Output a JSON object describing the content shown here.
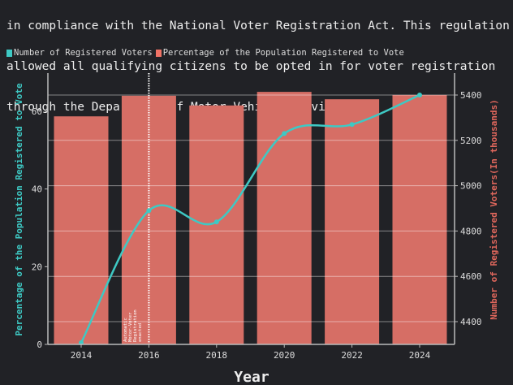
{
  "description": {
    "lines": [
      "in compliance with the National Voter Registration Act. This regulation",
      "allowed all qualifying citizens to be opted in for voter registration",
      "through the Department of Motor Vehicle services."
    ]
  },
  "legend": {
    "items": [
      {
        "label": "Number of Registered Voters",
        "color": "#3ec9c4"
      },
      {
        "label": "Percentage of the Population Registered to Vote",
        "color": "#f07366"
      }
    ]
  },
  "colors": {
    "bar": "#d66e65",
    "line": "#3ec9c4",
    "left_axis_label": "#3ec9c4",
    "right_axis_label": "#e0675c",
    "background": "#212226",
    "axis": "#bbbbbb"
  },
  "chart_data": {
    "type": "bar+line",
    "title": "",
    "xlabel": "Year",
    "categories": [
      "2014",
      "2016",
      "2018",
      "2020",
      "2022",
      "2024"
    ],
    "series": [
      {
        "name": "Percentage of the Population Registered to Vote",
        "type": "bar",
        "axis": "left",
        "values": [
          58.7,
          64.0,
          61.5,
          65.0,
          63.1,
          64.2
        ]
      },
      {
        "name": "Number of Registered Voters",
        "type": "line",
        "axis": "right",
        "values": [
          4300,
          4890,
          4840,
          5230,
          5270,
          5400
        ]
      }
    ],
    "ylabel_left": "Percentage of the Population Registered to Vote",
    "ylabel_right": "Number of Registered Voters(In thousands)",
    "ylim_left": [
      0,
      70
    ],
    "yticks_left": [
      "0",
      "20",
      "40",
      "60"
    ],
    "ylim_right": [
      4300,
      5510
    ],
    "yticks_right": [
      "4400",
      "4600",
      "4800",
      "5000",
      "5200",
      "5400"
    ],
    "grid": "horizontal (right axis)",
    "legend_position": "top-left",
    "annotations": [
      {
        "x": "2016",
        "text": "Automatic Motor-Voter Registration enacted",
        "style": "dotted vertical line"
      }
    ]
  }
}
